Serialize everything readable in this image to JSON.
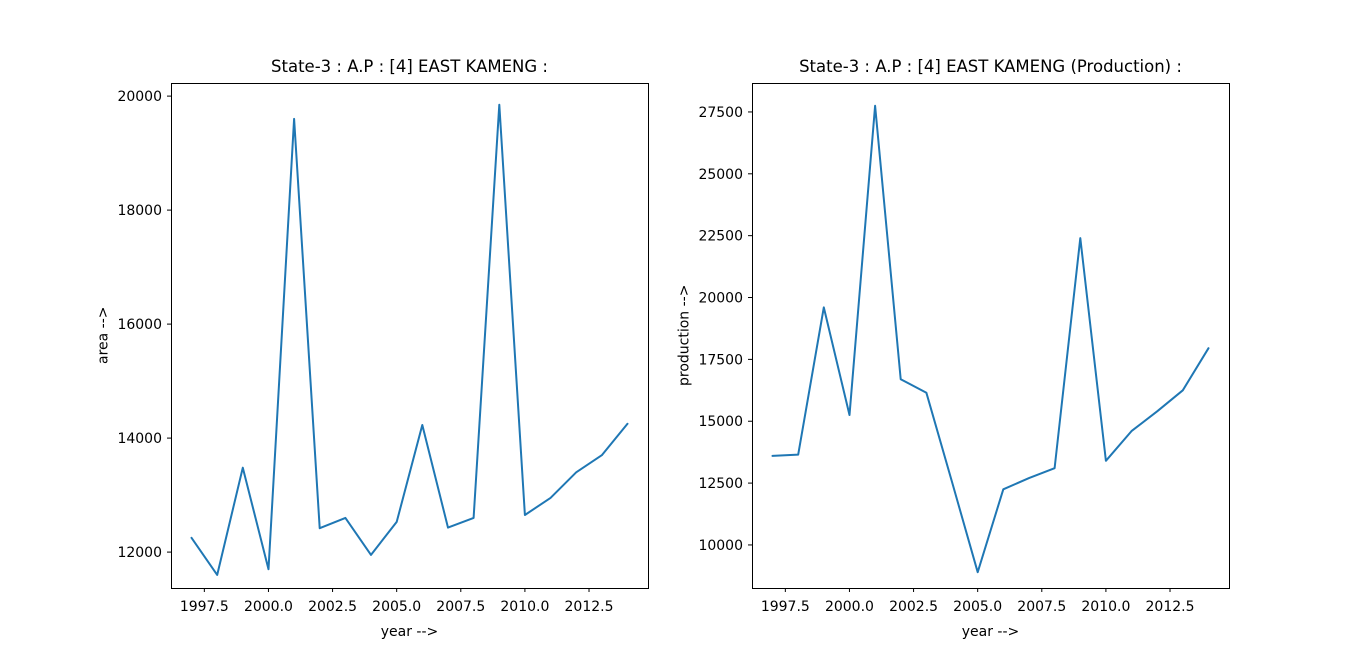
{
  "figure": {
    "background": "#ffffff",
    "line_color": "#1f77b4",
    "spine_color": "#000000",
    "text_color": "#000000"
  },
  "chart_data": [
    {
      "type": "line",
      "title": "State-3 : A.P : [4] EAST KAMENG :",
      "xlabel": "year -->",
      "ylabel": "area -->",
      "color": "#1f77b4",
      "grid": false,
      "legend": null,
      "x": [
        1997,
        1998,
        1999,
        2000,
        2001,
        2002,
        2003,
        2004,
        2005,
        2006,
        2007,
        2008,
        2009,
        2010,
        2011,
        2012,
        2013,
        2014
      ],
      "values": [
        12250,
        11600,
        13480,
        11700,
        19600,
        12420,
        12600,
        11950,
        12530,
        14230,
        12430,
        12600,
        19850,
        12650,
        12950,
        13400,
        13700,
        14250
      ],
      "xlim": [
        1996.2,
        2014.8
      ],
      "ylim": [
        11370,
        20230
      ],
      "xticks": {
        "values": [
          1997.5,
          2000.0,
          2002.5,
          2005.0,
          2007.5,
          2010.0,
          2012.5
        ],
        "labels": [
          "1997.5",
          "2000.0",
          "2002.5",
          "2005.0",
          "2007.5",
          "2010.0",
          "2012.5"
        ]
      },
      "yticks": {
        "values": [
          12000,
          14000,
          16000,
          18000,
          20000
        ],
        "labels": [
          "12000",
          "14000",
          "16000",
          "18000",
          "20000"
        ]
      }
    },
    {
      "type": "line",
      "title": "State-3 : A.P : [4] EAST KAMENG (Production) :",
      "xlabel": "year -->",
      "ylabel": "production -->",
      "color": "#1f77b4",
      "grid": false,
      "legend": null,
      "x": [
        1997,
        1998,
        1999,
        2000,
        2001,
        2002,
        2003,
        2004,
        2005,
        2006,
        2007,
        2008,
        2009,
        2010,
        2011,
        2012,
        2013,
        2014
      ],
      "values": [
        13600,
        13650,
        19600,
        15250,
        27750,
        16700,
        16150,
        12550,
        8900,
        12250,
        12700,
        13100,
        22400,
        13400,
        14600,
        15400,
        16250,
        17950
      ],
      "xlim": [
        1996.2,
        2014.8
      ],
      "ylim": [
        8260,
        28670
      ],
      "xticks": {
        "values": [
          1997.5,
          2000.0,
          2002.5,
          2005.0,
          2007.5,
          2010.0,
          2012.5
        ],
        "labels": [
          "1997.5",
          "2000.0",
          "2002.5",
          "2005.0",
          "2007.5",
          "2010.0",
          "2012.5"
        ]
      },
      "yticks": {
        "values": [
          10000,
          12500,
          15000,
          17500,
          20000,
          22500,
          25000,
          27500
        ],
        "labels": [
          "10000",
          "12500",
          "15000",
          "17500",
          "20000",
          "22500",
          "25000",
          "27500"
        ]
      }
    }
  ]
}
